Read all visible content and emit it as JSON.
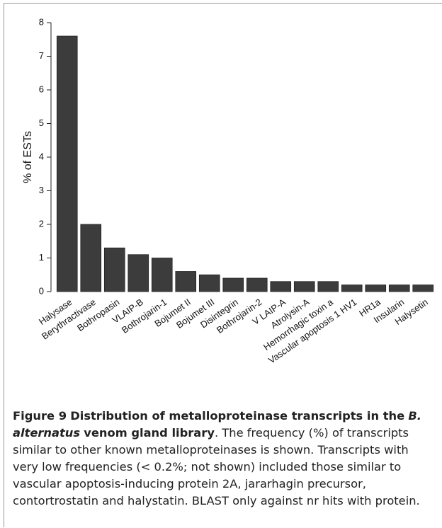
{
  "chart_data": {
    "type": "bar",
    "ylabel": "% of ESTs",
    "categories": [
      "Halysase",
      "Berythractivase",
      "Bothropasin",
      "VLAIP-B",
      "Bothrojarin-1",
      "Bojumet II",
      "Bojumet III",
      "Disintegrin",
      "Bothrojarin-2",
      "V LAIP-A",
      "Atrolysin-A",
      "Hemorrhagic toxin a",
      "Vascular apoptosis 1 HV1",
      "HR1a",
      "Insularin",
      "Halysetin"
    ],
    "values": [
      7.6,
      2.0,
      1.3,
      1.1,
      1.0,
      0.6,
      0.5,
      0.4,
      0.4,
      0.3,
      0.3,
      0.3,
      0.2,
      0.2,
      0.2,
      0.2
    ],
    "color": "#3c3c3c",
    "ylim": [
      0,
      8
    ],
    "yticks": [
      0,
      1,
      2,
      3,
      4,
      5,
      6,
      7,
      8
    ],
    "grid": false
  },
  "caption": {
    "label": "Figure 9",
    "title_before": "Distribution of metalloproteinase transcripts in the",
    "species": "B. alternatus",
    "title_after": "venom gland library",
    "text": ". The frequency (%) of transcripts similar to other known metalloproteinases is shown. Transcripts with very low frequencies (< 0.2%; not shown) included those similar to vascular apoptosis-inducing protein 2A, jararhagin precursor, contortrostatin and halystatin. BLAST only against nr hits with protein."
  }
}
